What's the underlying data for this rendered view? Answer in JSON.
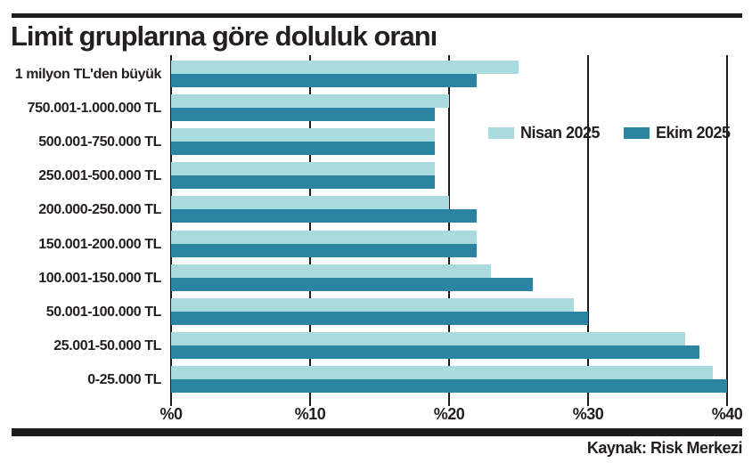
{
  "title": "Limit gruplarına göre doluluk oranı",
  "source": "Kaynak: Risk Merkezi",
  "colors": {
    "nisan": "#a9dade",
    "ekim": "#2b84a2",
    "grid": "#1a1a1a",
    "text": "#231f20",
    "rule": "#1c1c1c"
  },
  "legend": {
    "items": [
      {
        "label": "Nisan 2025",
        "color": "#a9dade"
      },
      {
        "label": "Ekim 2025",
        "color": "#2b84a2"
      }
    ]
  },
  "chart_data": {
    "type": "bar",
    "orientation": "horizontal",
    "title": "Limit gruplarına göre doluluk oranı",
    "categories": [
      "1 milyon TL'den büyük",
      "750.001-1.000.000 TL",
      "500.001-750.000 TL",
      "250.001-500.000 TL",
      "200.000-250.000 TL",
      "150.001-200.000 TL",
      "100.001-150.000 TL",
      "50.001-100.000 TL",
      "25.001-50.000 TL",
      "0-25.000 TL"
    ],
    "series": [
      {
        "name": "Nisan 2025",
        "color": "#a9dade",
        "values": [
          25,
          20,
          19,
          19,
          20,
          22,
          23,
          29,
          37,
          39
        ]
      },
      {
        "name": "Ekim 2025",
        "color": "#2b84a2",
        "values": [
          22,
          19,
          19,
          19,
          22,
          22,
          26,
          30,
          38,
          40
        ]
      }
    ],
    "xlabel": "",
    "ylabel": "",
    "xlim": [
      0,
      40
    ],
    "xticks": [
      "%0",
      "%10",
      "%20",
      "%30",
      "%40"
    ],
    "xtick_values": [
      0,
      10,
      20,
      30,
      40
    ],
    "grid": "vertical",
    "legend_position": "inside-upper-right",
    "unit": "percent"
  }
}
